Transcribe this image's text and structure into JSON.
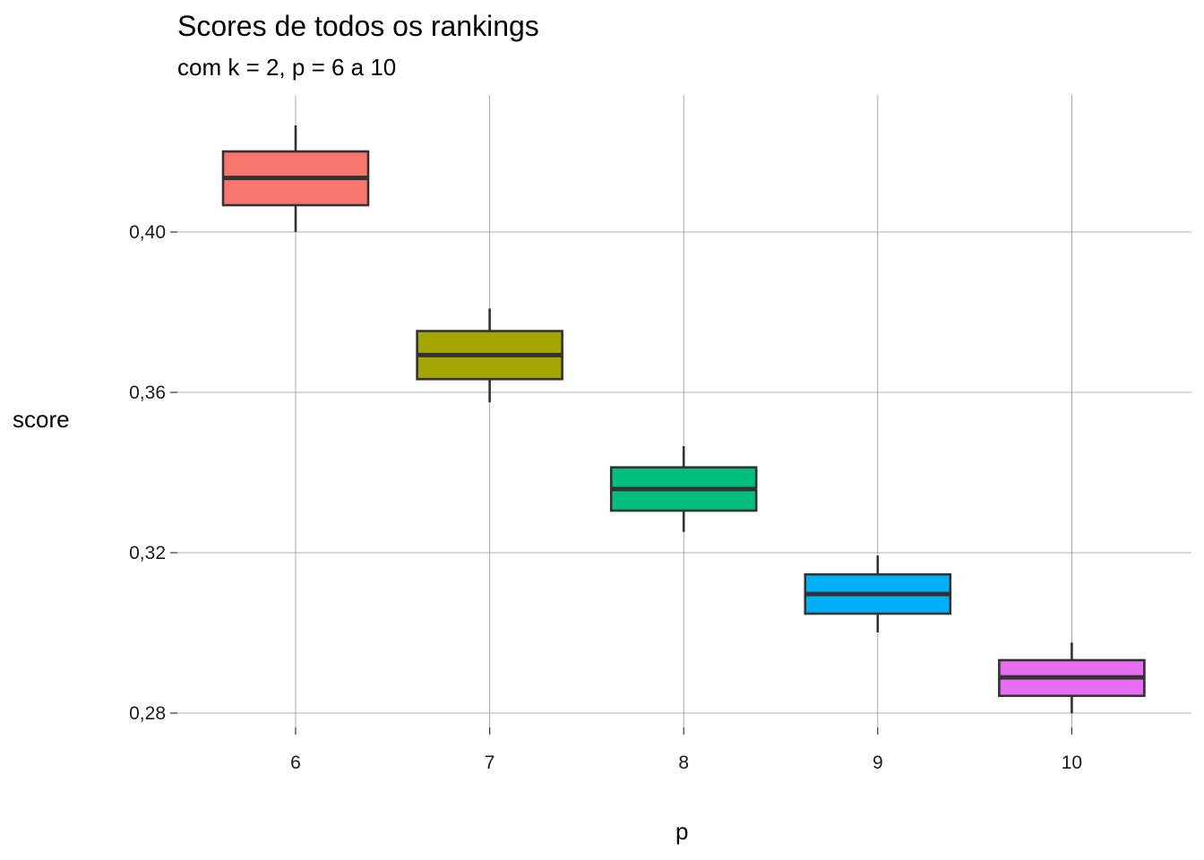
{
  "chart_data": {
    "type": "box",
    "title": "Scores de todos os rankings",
    "subtitle": "com k = 2,  p = 6 a 10",
    "xlabel": "p",
    "ylabel": "score",
    "categories": [
      "6",
      "7",
      "8",
      "9",
      "10"
    ],
    "y_ticks": [
      {
        "value": 0.28,
        "label": "0,28"
      },
      {
        "value": 0.32,
        "label": "0,32"
      },
      {
        "value": 0.36,
        "label": "0,36"
      },
      {
        "value": 0.4,
        "label": "0,40"
      }
    ],
    "ylim": [
      0.2765,
      0.4375
    ],
    "grid": true,
    "legend": "none",
    "boxes": [
      {
        "category": "6",
        "min": 0.4,
        "q1": 0.4067,
        "median": 0.4135,
        "q3": 0.4201,
        "max": 0.4266,
        "color": "#F8766D"
      },
      {
        "category": "7",
        "min": 0.3575,
        "q1": 0.3633,
        "median": 0.3693,
        "q3": 0.3753,
        "max": 0.3809,
        "color": "#A3A500"
      },
      {
        "category": "8",
        "min": 0.3252,
        "q1": 0.3305,
        "median": 0.3359,
        "q3": 0.3413,
        "max": 0.3466,
        "color": "#00BF7D"
      },
      {
        "category": "9",
        "min": 0.3001,
        "q1": 0.3048,
        "median": 0.3097,
        "q3": 0.3146,
        "max": 0.3193,
        "color": "#00B0F6"
      },
      {
        "category": "10",
        "min": 0.28,
        "q1": 0.2843,
        "median": 0.2889,
        "q3": 0.2932,
        "max": 0.2976,
        "color": "#E76BF3"
      }
    ]
  }
}
